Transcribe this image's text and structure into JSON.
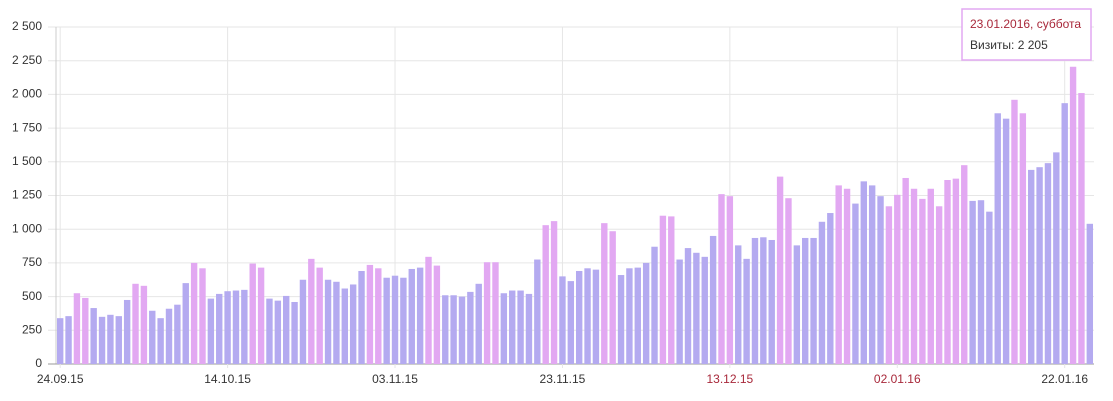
{
  "chart_data": {
    "type": "bar",
    "categories": [
      "24.09.15",
      null,
      null,
      null,
      null,
      null,
      null,
      null,
      null,
      null,
      null,
      null,
      null,
      null,
      null,
      null,
      null,
      null,
      null,
      null,
      "14.10.15",
      null,
      null,
      null,
      null,
      null,
      null,
      null,
      null,
      null,
      null,
      null,
      null,
      null,
      null,
      null,
      null,
      null,
      null,
      null,
      "03.11.15",
      null,
      null,
      null,
      null,
      null,
      null,
      null,
      null,
      null,
      null,
      null,
      null,
      null,
      null,
      null,
      null,
      null,
      null,
      null,
      "23.11.15",
      null,
      null,
      null,
      null,
      null,
      null,
      null,
      null,
      null,
      null,
      null,
      null,
      null,
      null,
      null,
      null,
      null,
      null,
      null,
      "13.12.15",
      null,
      null,
      null,
      null,
      null,
      null,
      null,
      null,
      null,
      null,
      null,
      null,
      null,
      null,
      null,
      null,
      null,
      null,
      null,
      "02.01.16",
      null,
      null,
      null,
      null,
      null,
      null,
      null,
      null,
      null,
      null,
      null,
      null,
      null,
      null,
      null,
      null,
      null,
      null,
      null,
      "22.01.16",
      null,
      null,
      null
    ],
    "values": [
      340,
      355,
      525,
      490,
      415,
      350,
      365,
      355,
      475,
      595,
      580,
      395,
      340,
      410,
      440,
      600,
      750,
      710,
      485,
      520,
      540,
      545,
      550,
      745,
      715,
      485,
      470,
      505,
      460,
      625,
      780,
      715,
      625,
      610,
      560,
      590,
      690,
      735,
      710,
      640,
      655,
      640,
      705,
      715,
      795,
      730,
      510,
      510,
      500,
      535,
      595,
      755,
      755,
      525,
      545,
      545,
      520,
      775,
      1030,
      1060,
      650,
      615,
      690,
      710,
      700,
      1045,
      985,
      660,
      710,
      715,
      750,
      870,
      1100,
      1095,
      775,
      860,
      825,
      795,
      950,
      1260,
      1245,
      880,
      780,
      935,
      940,
      920,
      1390,
      1230,
      880,
      935,
      935,
      1055,
      1120,
      1325,
      1300,
      1190,
      1355,
      1325,
      1245,
      1170,
      1255,
      1380,
      1300,
      1225,
      1300,
      1170,
      1365,
      1375,
      1475,
      1210,
      1215,
      1130,
      1860,
      1820,
      1960,
      1860,
      1440,
      1460,
      1490,
      1570,
      1935,
      2205,
      2010,
      1040
    ],
    "colors": [
      "#b4aaf0",
      "#b4aaf0",
      "#e2a8f2",
      "#e2a8f2",
      "#b4aaf0",
      "#b4aaf0",
      "#b4aaf0",
      "#b4aaf0",
      "#b4aaf0",
      "#e2a8f2",
      "#e2a8f2",
      "#b4aaf0",
      "#b4aaf0",
      "#b4aaf0",
      "#b4aaf0",
      "#b4aaf0",
      "#e2a8f2",
      "#e2a8f2",
      "#b4aaf0",
      "#b4aaf0",
      "#b4aaf0",
      "#b4aaf0",
      "#b4aaf0",
      "#e2a8f2",
      "#e2a8f2",
      "#b4aaf0",
      "#b4aaf0",
      "#b4aaf0",
      "#b4aaf0",
      "#b4aaf0",
      "#e2a8f2",
      "#e2a8f2",
      "#b4aaf0",
      "#b4aaf0",
      "#b4aaf0",
      "#b4aaf0",
      "#b4aaf0",
      "#e2a8f2",
      "#e2a8f2",
      "#b4aaf0",
      "#b4aaf0",
      "#b4aaf0",
      "#b4aaf0",
      "#b4aaf0",
      "#e2a8f2",
      "#e2a8f2",
      "#b4aaf0",
      "#b4aaf0",
      "#b4aaf0",
      "#b4aaf0",
      "#b4aaf0",
      "#e2a8f2",
      "#e2a8f2",
      "#b4aaf0",
      "#b4aaf0",
      "#b4aaf0",
      "#b4aaf0",
      "#b4aaf0",
      "#e2a8f2",
      "#e2a8f2",
      "#b4aaf0",
      "#b4aaf0",
      "#b4aaf0",
      "#b4aaf0",
      "#b4aaf0",
      "#e2a8f2",
      "#e2a8f2",
      "#b4aaf0",
      "#b4aaf0",
      "#b4aaf0",
      "#b4aaf0",
      "#b4aaf0",
      "#e2a8f2",
      "#e2a8f2",
      "#b4aaf0",
      "#b4aaf0",
      "#b4aaf0",
      "#b4aaf0",
      "#b4aaf0",
      "#e2a8f2",
      "#e2a8f2",
      "#b4aaf0",
      "#b4aaf0",
      "#b4aaf0",
      "#b4aaf0",
      "#b4aaf0",
      "#e2a8f2",
      "#e2a8f2",
      "#b4aaf0",
      "#b4aaf0",
      "#b4aaf0",
      "#b4aaf0",
      "#b4aaf0",
      "#e2a8f2",
      "#e2a8f2",
      "#b4aaf0",
      "#b4aaf0",
      "#b4aaf0",
      "#b4aaf0",
      "#e2a8f2",
      "#e2a8f2",
      "#e2a8f2",
      "#e2a8f2",
      "#e2a8f2",
      "#e2a8f2",
      "#e2a8f2",
      "#e2a8f2",
      "#e2a8f2",
      "#e2a8f2",
      "#b4aaf0",
      "#b4aaf0",
      "#b4aaf0",
      "#b4aaf0",
      "#b4aaf0",
      "#e2a8f2",
      "#e2a8f2",
      "#b4aaf0",
      "#b4aaf0",
      "#b4aaf0",
      "#b4aaf0",
      "#b4aaf0",
      "#e2a8f2",
      "#e2a8f2",
      "#b4aaf0"
    ],
    "label_colors": [
      "#333333",
      null,
      null,
      null,
      null,
      null,
      null,
      null,
      null,
      null,
      null,
      null,
      null,
      null,
      null,
      null,
      null,
      null,
      null,
      null,
      "#333333",
      null,
      null,
      null,
      null,
      null,
      null,
      null,
      null,
      null,
      null,
      null,
      null,
      null,
      null,
      null,
      null,
      null,
      null,
      null,
      "#333333",
      null,
      null,
      null,
      null,
      null,
      null,
      null,
      null,
      null,
      null,
      null,
      null,
      null,
      null,
      null,
      null,
      null,
      null,
      null,
      "#333333",
      null,
      null,
      null,
      null,
      null,
      null,
      null,
      null,
      null,
      null,
      null,
      null,
      null,
      null,
      null,
      null,
      null,
      null,
      null,
      "#a8283a",
      null,
      null,
      null,
      null,
      null,
      null,
      null,
      null,
      null,
      null,
      null,
      null,
      null,
      null,
      null,
      null,
      null,
      null,
      null,
      "#a8283a",
      null,
      null,
      null,
      null,
      null,
      null,
      null,
      null,
      null,
      null,
      null,
      null,
      null,
      null,
      null,
      null,
      null,
      null,
      null,
      "#333333",
      null,
      null,
      null
    ],
    "ylim": [
      0,
      2500
    ],
    "yticks": [
      0,
      250,
      500,
      750,
      {
        "value": 1000,
        "label": "1 000"
      },
      {
        "value": 1250,
        "label": "1 250"
      },
      {
        "value": 1500,
        "label": "1 500"
      },
      {
        "value": 1750,
        "label": "1 750"
      },
      {
        "value": 2000,
        "label": "2 000"
      },
      {
        "value": 2250,
        "label": "2 250"
      },
      {
        "value": 2500,
        "label": "2 500"
      }
    ],
    "grid": true,
    "tooltip": {
      "date": "23.01.2016, суббота",
      "label": "Визиты:",
      "value": 2205,
      "value_label": "2 205"
    }
  }
}
